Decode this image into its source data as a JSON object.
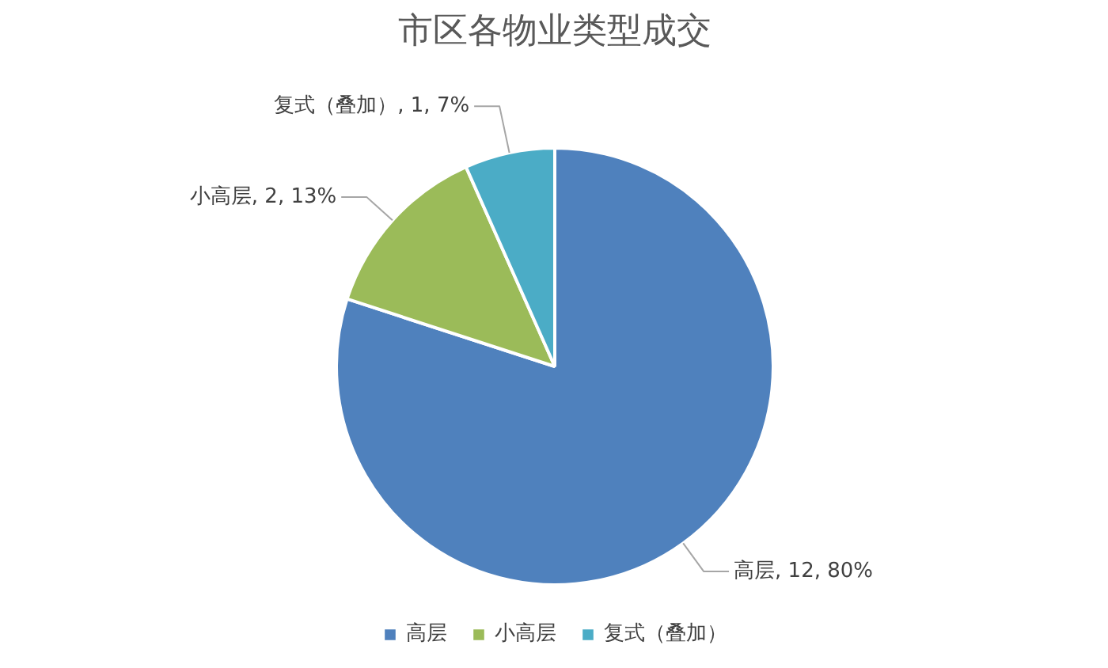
{
  "chart_data": {
    "type": "pie",
    "title": "市区各物业类型成交",
    "categories": [
      "高层",
      "小高层",
      "复式（叠加）"
    ],
    "values": [
      12,
      2,
      1
    ],
    "colors": [
      "#4f81bd",
      "#9bbb59",
      "#4bacc6"
    ],
    "value_labels": [
      "高层, 12, 80%",
      "小高层, 2, 13%",
      "复式（叠加）, 1, 7%"
    ],
    "legend": "bottom"
  }
}
